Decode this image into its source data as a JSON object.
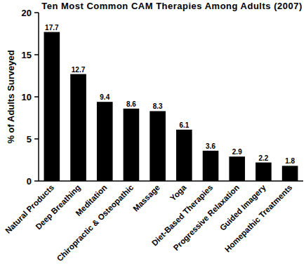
{
  "chart_data": {
    "type": "bar",
    "title": "Ten Most Common CAM Therapies Among Adults (2007)",
    "y_label": "% of Adults Surveyed",
    "categories": [
      "Natural Products",
      "Deep Breathing",
      "Meditation",
      "Chiropractic & Osteopathic",
      "Massage",
      "Yoga",
      "Diet-Based Therapies",
      "Progressive Relaxation",
      "Guided Imagery",
      "Homepathic Treatments"
    ],
    "values": [
      17.7,
      12.7,
      9.4,
      8.6,
      8.3,
      6.1,
      3.6,
      2.9,
      2.2,
      1.8
    ],
    "color": "#000000",
    "ylim": [
      0,
      20
    ],
    "yticks": [
      0,
      5,
      10,
      15,
      20
    ],
    "grid": false,
    "data_labels": true
  }
}
